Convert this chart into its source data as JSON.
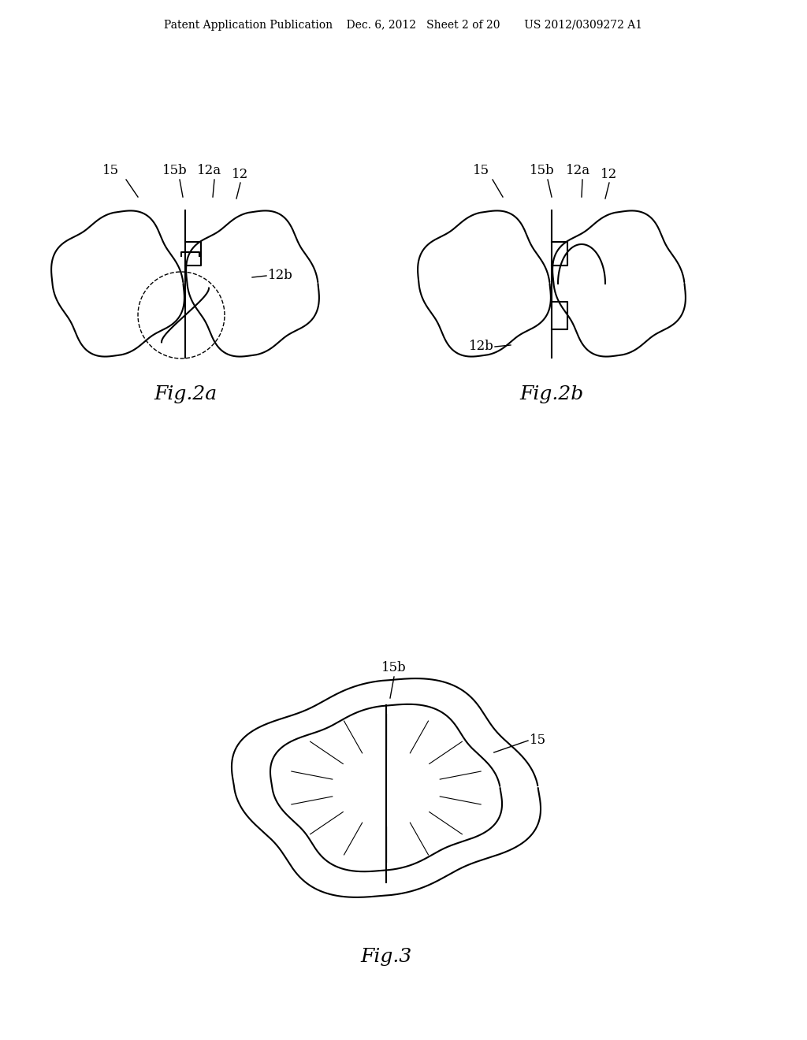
{
  "background_color": "#ffffff",
  "header_text": "Patent Application Publication    Dec. 6, 2012   Sheet 2 of 20       US 2012/0309272 A1",
  "fig2a_label": "Fig.2a",
  "fig2b_label": "Fig.2b",
  "fig3_label": "Fig.3",
  "line_color": "#000000",
  "dashed_color": "#555555",
  "font_size_header": 10,
  "font_size_fig_label": 18,
  "font_size_annot": 12
}
